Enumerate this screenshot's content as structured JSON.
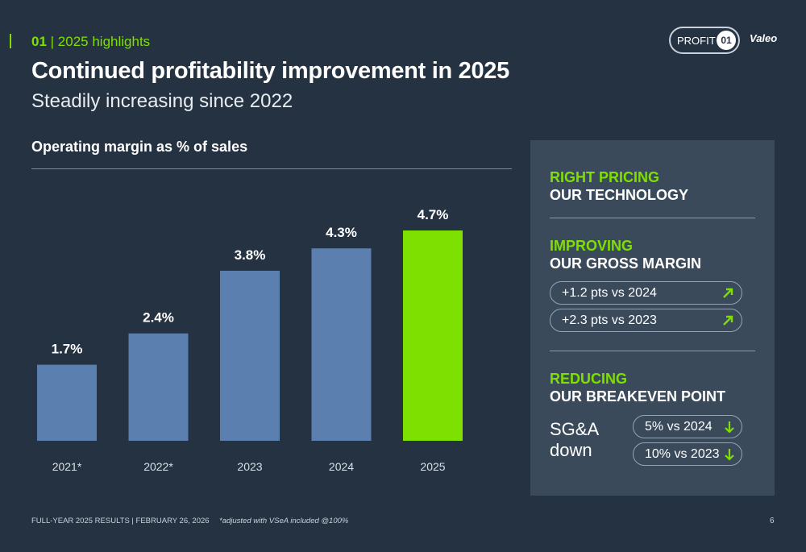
{
  "header": {
    "section_number": "01",
    "section_label": "| 2025 highlights",
    "title": "Continued profitability improvement in 2025",
    "subtitle": "Steadily increasing since 2022",
    "badge_label": "PROFIT",
    "badge_number": "01",
    "logo_text": "Valeo"
  },
  "colors": {
    "background": "#243241",
    "accent_green": "#7ee000",
    "bar_blue": "#5b7fae",
    "panel": "#3a4a5a"
  },
  "chart_data": {
    "type": "bar",
    "title": "Operating margin as % of sales",
    "categories": [
      "2021*",
      "2022*",
      "2023",
      "2024",
      "2025"
    ],
    "values": [
      1.7,
      2.4,
      3.8,
      4.3,
      4.7
    ],
    "value_labels": [
      "1.7%",
      "2.4%",
      "3.8%",
      "4.3%",
      "4.7%"
    ],
    "highlight_index": 4,
    "xlabel": "",
    "ylabel": "",
    "ylim": [
      0,
      4.7
    ],
    "grid": false,
    "legend": "none"
  },
  "panel": {
    "block1_green": "RIGHT PRICING",
    "block1_white": "OUR TECHNOLOGY",
    "block2_green": "IMPROVING",
    "block2_white": "OUR GROSS MARGIN",
    "block2_pills": [
      {
        "text": "+1.2 pts vs 2024",
        "icon": "arrow-up-right-icon"
      },
      {
        "text": "+2.3 pts vs 2023",
        "icon": "arrow-up-right-icon"
      }
    ],
    "block3_green": "REDUCING",
    "block3_white": "OUR BREAKEVEN POINT",
    "sga_line1": "SG&A",
    "sga_line2": "down",
    "block3_pills": [
      {
        "text": "5% vs 2024",
        "icon": "arrow-down-icon"
      },
      {
        "text": "10% vs 2023",
        "icon": "arrow-down-icon"
      }
    ]
  },
  "footer": {
    "left": "FULL-YEAR 2025 RESULTS | FEBRUARY 26, 2026",
    "footnote": "*adjusted with VSeA included @100%",
    "page_number": "6"
  }
}
